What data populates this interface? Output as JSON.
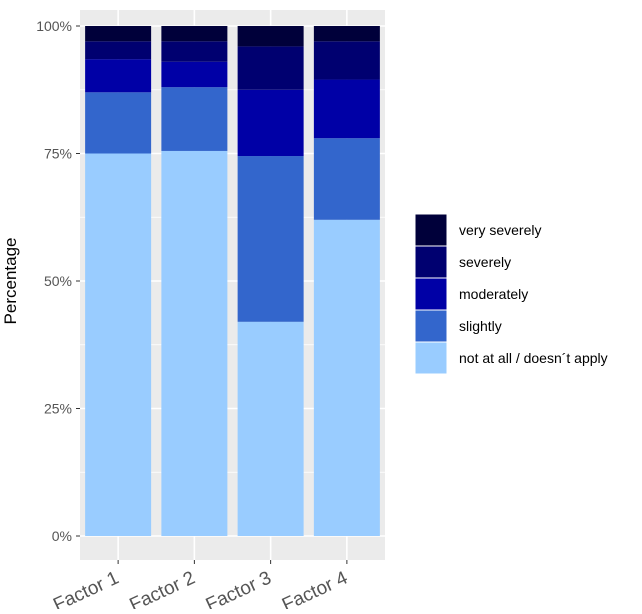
{
  "chart_data": {
    "type": "bar",
    "stacked": true,
    "normalized": true,
    "title": "",
    "xlabel": "",
    "ylabel": "Percentage",
    "ylim": [
      0,
      1
    ],
    "yticks": [
      {
        "value": 0,
        "label": "0%"
      },
      {
        "value": 0.25,
        "label": "25%"
      },
      {
        "value": 0.5,
        "label": "50%"
      },
      {
        "value": 0.75,
        "label": "75%"
      },
      {
        "value": 1,
        "label": "100%"
      }
    ],
    "categories": [
      "Factor 1",
      "Factor 2",
      "Factor 3",
      "Factor 4"
    ],
    "series": [
      {
        "name": "not at all / doesn´t apply",
        "color": "#99CCFF",
        "values": [
          0.75,
          0.755,
          0.42,
          0.62
        ]
      },
      {
        "name": "slightly",
        "color": "#3366CC",
        "values": [
          0.12,
          0.125,
          0.325,
          0.16
        ]
      },
      {
        "name": "moderately",
        "color": "#0000A6",
        "values": [
          0.065,
          0.05,
          0.13,
          0.115
        ]
      },
      {
        "name": "severely",
        "color": "#000070",
        "values": [
          0.035,
          0.04,
          0.085,
          0.075
        ]
      },
      {
        "name": "very severely",
        "color": "#00003A",
        "values": [
          0.03,
          0.03,
          0.04,
          0.03
        ]
      }
    ],
    "legend_position": "right",
    "grid": true,
    "panel_background": "#EBEBEB",
    "gridline_color": "#FFFFFF"
  }
}
